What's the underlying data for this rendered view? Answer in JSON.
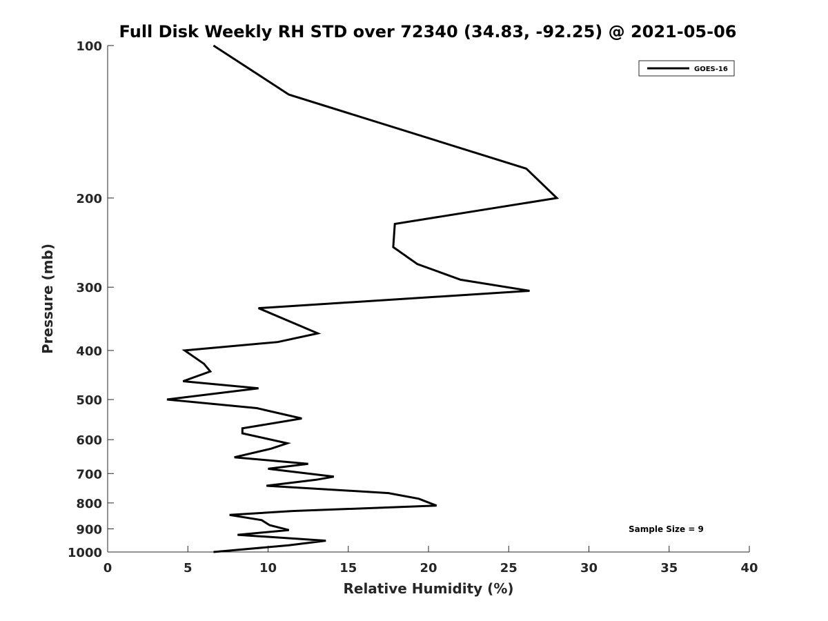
{
  "chart_data": {
    "type": "line",
    "title": "Full Disk Weekly RH STD over 72340 (34.83, -92.25) @ 2021-05-06",
    "xlabel": "Relative Humidity (%)",
    "ylabel": "Pressure (mb)",
    "xlim": [
      0,
      40
    ],
    "ylim": [
      100,
      1000
    ],
    "yscale": "log",
    "yreversed": true,
    "xticks": [
      0,
      5,
      10,
      15,
      20,
      25,
      30,
      35,
      40
    ],
    "yticks": [
      100,
      200,
      300,
      400,
      500,
      600,
      700,
      800,
      900,
      1000
    ],
    "grid": false,
    "legend_position": "top-right",
    "annotation": "Sample Size = 9",
    "series": [
      {
        "name": "GOES-16",
        "color": "#000000",
        "points": [
          [
            6.6,
            100
          ],
          [
            11.3,
            125
          ],
          [
            26.1,
            175
          ],
          [
            28.0,
            200
          ],
          [
            17.9,
            225
          ],
          [
            17.8,
            250
          ],
          [
            19.3,
            270
          ],
          [
            22.0,
            290
          ],
          [
            26.3,
            305
          ],
          [
            9.4,
            330
          ],
          [
            13.1,
            370
          ],
          [
            10.6,
            385
          ],
          [
            4.8,
            400
          ],
          [
            6.0,
            425
          ],
          [
            6.4,
            440
          ],
          [
            4.7,
            460
          ],
          [
            9.4,
            475
          ],
          [
            3.7,
            500
          ],
          [
            9.3,
            520
          ],
          [
            12.1,
            545
          ],
          [
            8.4,
            570
          ],
          [
            8.4,
            583
          ],
          [
            11.2,
            610
          ],
          [
            10.2,
            625
          ],
          [
            7.9,
            650
          ],
          [
            12.5,
            670
          ],
          [
            10.0,
            685
          ],
          [
            14.1,
            710
          ],
          [
            13.0,
            720
          ],
          [
            9.9,
            740
          ],
          [
            17.5,
            765
          ],
          [
            19.4,
            785
          ],
          [
            20.5,
            810
          ],
          [
            11.5,
            830
          ],
          [
            7.6,
            845
          ],
          [
            9.6,
            865
          ],
          [
            10.1,
            885
          ],
          [
            11.3,
            905
          ],
          [
            8.1,
            925
          ],
          [
            13.6,
            950
          ],
          [
            11.3,
            970
          ],
          [
            6.6,
            1000
          ]
        ]
      }
    ]
  }
}
